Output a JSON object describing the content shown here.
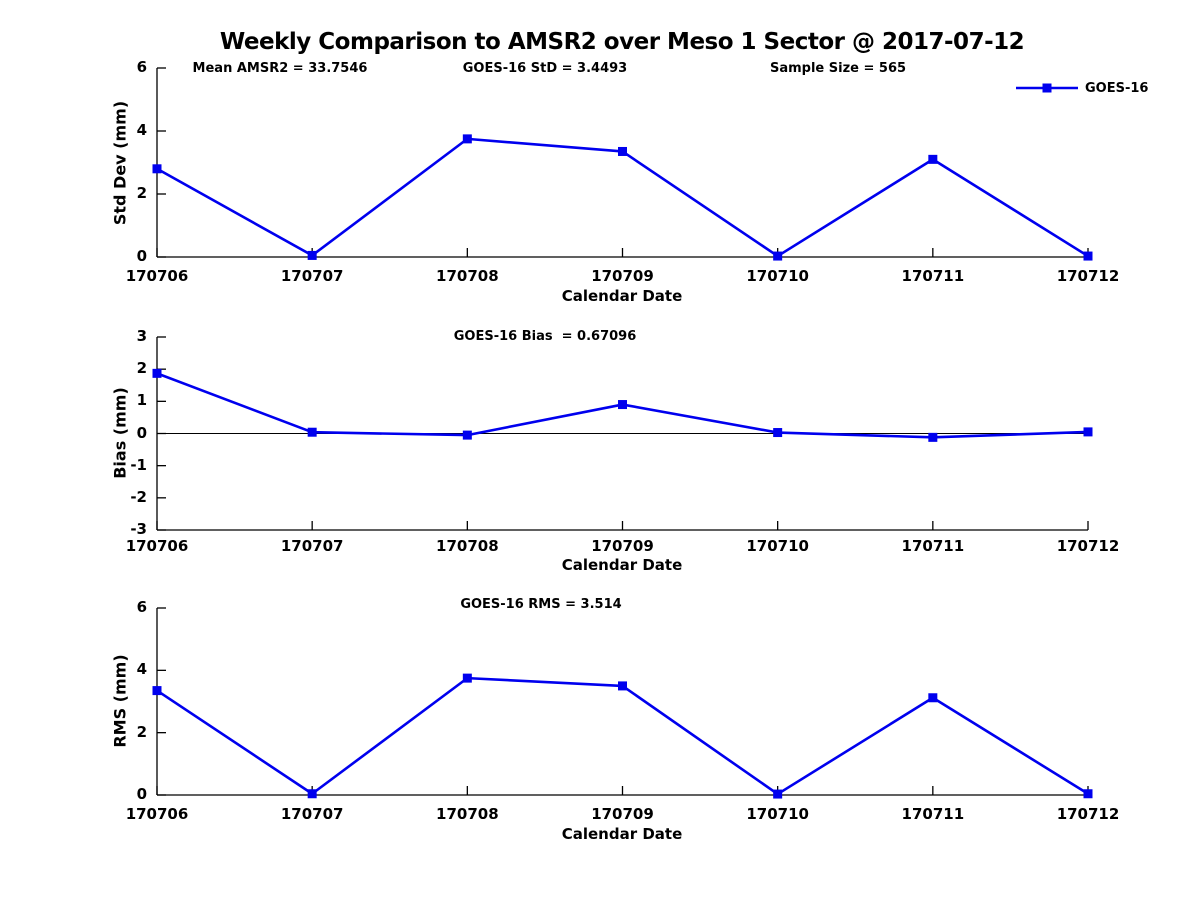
{
  "page": {
    "title": "Weekly Comparison to AMSR2 over Meso 1 Sector @ 2017-07-12"
  },
  "legend": {
    "label": "GOES-16",
    "series_color": "#0000EE",
    "position": "top-right"
  },
  "xlabel": "Calendar Date",
  "chart_data": [
    {
      "type": "line",
      "panel": "std-dev",
      "annotations": [
        {
          "text": "Mean AMSR2 = 33.7546"
        },
        {
          "text": "GOES-16 StD = 3.4493"
        },
        {
          "text": "Sample Size = 565"
        }
      ],
      "categories": [
        "170706",
        "170707",
        "170708",
        "170709",
        "170710",
        "170711",
        "170712"
      ],
      "series": [
        {
          "name": "GOES-16",
          "color": "#0000EE",
          "marker": "square",
          "values": [
            2.8,
            0.05,
            3.75,
            3.35,
            0.03,
            3.1,
            0.03
          ]
        }
      ],
      "xlabel": "Calendar Date",
      "ylabel": "Std Dev (mm)",
      "ylim": [
        0,
        6
      ],
      "yticks": [
        0,
        2,
        4,
        6
      ],
      "zero_line": false,
      "grid": false,
      "legend_visible": true
    },
    {
      "type": "line",
      "panel": "bias",
      "annotations": [
        {
          "text": "GOES-16 Bias  = 0.67096"
        }
      ],
      "categories": [
        "170706",
        "170707",
        "170708",
        "170709",
        "170710",
        "170711",
        "170712"
      ],
      "series": [
        {
          "name": "GOES-16",
          "color": "#0000EE",
          "marker": "square",
          "values": [
            1.87,
            0.04,
            -0.05,
            0.9,
            0.03,
            -0.12,
            0.05
          ]
        }
      ],
      "xlabel": "Calendar Date",
      "ylabel": "Bias (mm)",
      "ylim": [
        -3,
        3
      ],
      "yticks": [
        -3,
        -2,
        -1,
        0,
        1,
        2,
        3
      ],
      "zero_line": true,
      "grid": false,
      "legend_visible": false
    },
    {
      "type": "line",
      "panel": "rms",
      "annotations": [
        {
          "text": "GOES-16 RMS = 3.514"
        }
      ],
      "categories": [
        "170706",
        "170707",
        "170708",
        "170709",
        "170710",
        "170711",
        "170712"
      ],
      "series": [
        {
          "name": "GOES-16",
          "color": "#0000EE",
          "marker": "square",
          "values": [
            3.35,
            0.04,
            3.75,
            3.5,
            0.03,
            3.12,
            0.04
          ]
        }
      ],
      "xlabel": "Calendar Date",
      "ylabel": "RMS (mm)",
      "ylim": [
        0,
        6
      ],
      "yticks": [
        0,
        2,
        4,
        6
      ],
      "zero_line": false,
      "grid": false,
      "legend_visible": false
    }
  ]
}
